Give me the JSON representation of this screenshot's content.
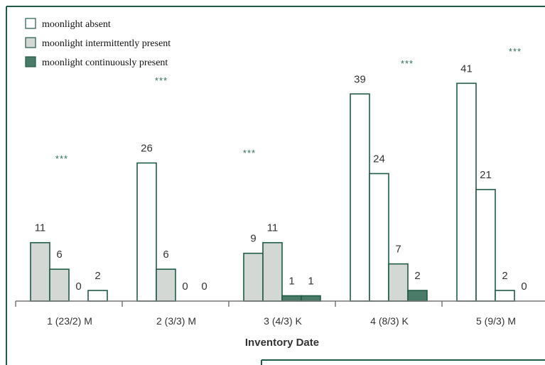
{
  "chart_data": {
    "type": "bar",
    "title": "",
    "xlabel": "Inventory Date",
    "ylabel": "",
    "ylim": [
      0,
      41
    ],
    "grid": false,
    "legend_position": "top-left",
    "categories": [
      "1 (23/2) M",
      "2 (3/3) M",
      "3 (4/3) K",
      "4 (8/3) K",
      "5 (9/3) M"
    ],
    "category_values": [
      [
        11,
        6,
        0,
        2
      ],
      [
        26,
        6,
        0,
        0
      ],
      [
        9,
        11,
        1,
        1
      ],
      [
        39,
        24,
        7,
        2
      ],
      [
        41,
        21,
        2,
        0
      ]
    ],
    "bar_styles": [
      [
        "intermittent",
        "intermittent",
        "absent",
        "absent"
      ],
      [
        "absent",
        "intermittent",
        "absent",
        "absent"
      ],
      [
        "intermittent",
        "intermittent",
        "continuous",
        "continuous"
      ],
      [
        "absent",
        "absent",
        "intermittent",
        "continuous"
      ],
      [
        "absent",
        "absent",
        "absent",
        "absent"
      ]
    ],
    "significance": [
      "***",
      "***",
      "***",
      "***",
      "***"
    ],
    "legend": [
      {
        "key": "absent",
        "label": "moonlight absent"
      },
      {
        "key": "intermittent",
        "label": "moonlight intermittently present"
      },
      {
        "key": "continuous",
        "label": "moonlight continuously present"
      }
    ],
    "colors": {
      "absent": "#ffffff",
      "intermittent": "#d3d8d5",
      "continuous": "#4a7a68",
      "outline": "#1f5c45",
      "frame": "#1f5c45"
    }
  }
}
